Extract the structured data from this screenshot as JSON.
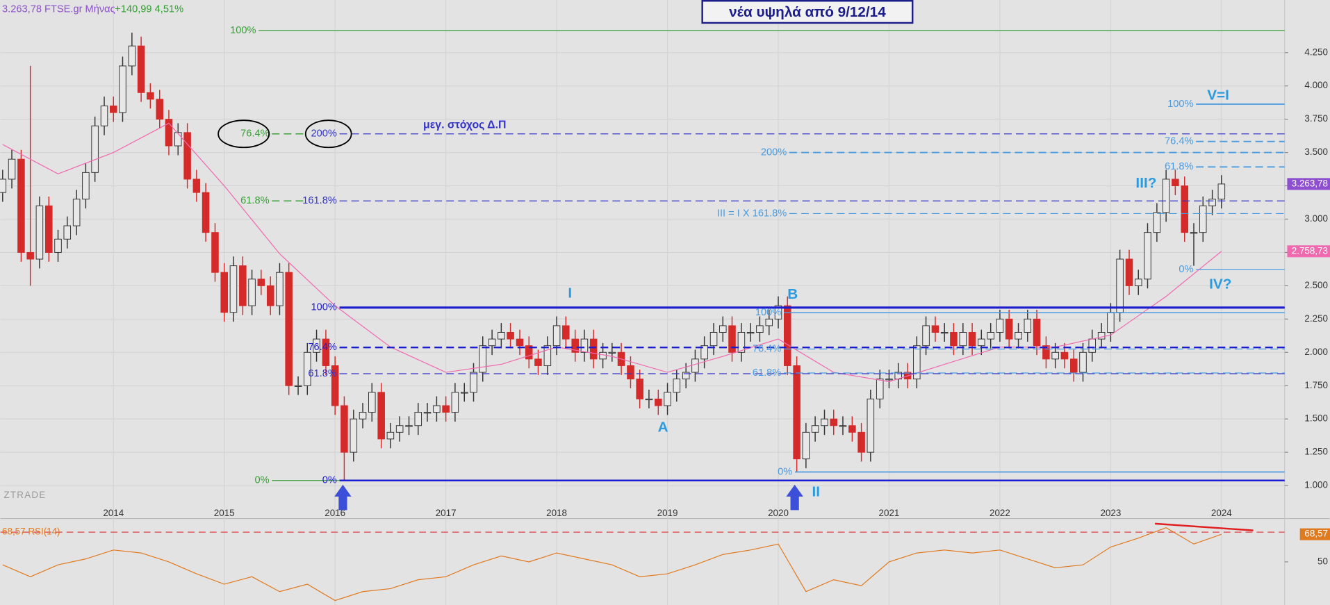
{
  "chart_data": [
    {
      "type": "candlestick",
      "title": "νέα υψηλά από 9/12/14",
      "header": [
        "3.263,78 FTSE.gr Μήνας",
        "+140,99 4,51%"
      ],
      "watermark": "ZTRADE",
      "xlim": [
        2012.98,
        2024.57
      ],
      "xticks": [
        2014,
        2015,
        2016,
        2017,
        2018,
        2019,
        2020,
        2021,
        2022,
        2023,
        2024
      ],
      "ylim": [
        765,
        4645
      ],
      "yticks": [
        {
          "value": 1000,
          "label": "1.000"
        },
        {
          "value": 1250,
          "label": "1.250"
        },
        {
          "value": 1500,
          "label": "1.500"
        },
        {
          "value": 1750,
          "label": "1.750"
        },
        {
          "value": 2000,
          "label": "2.000"
        },
        {
          "value": 2250,
          "label": "2.250"
        },
        {
          "value": 2500,
          "label": "2.500"
        },
        {
          "value": 2750,
          "label": "2.750"
        },
        {
          "value": 3000,
          "label": "3.000"
        },
        {
          "value": 3250,
          "label": "3.250"
        },
        {
          "value": 3500,
          "label": "3.500"
        },
        {
          "value": 3750,
          "label": "3.750"
        },
        {
          "value": 4000,
          "label": "4.000"
        },
        {
          "value": 4250,
          "label": "4.250"
        }
      ],
      "grid": true,
      "up_color": "#e8e8e8",
      "down_color": "#d42a2a",
      "x": [
        2013,
        2013.083,
        2013.167,
        2013.25,
        2013.333,
        2013.417,
        2013.5,
        2013.583,
        2013.667,
        2013.75,
        2013.833,
        2013.917,
        2014,
        2014.083,
        2014.167,
        2014.25,
        2014.333,
        2014.417,
        2014.5,
        2014.583,
        2014.667,
        2014.75,
        2014.833,
        2014.917,
        2015,
        2015.083,
        2015.167,
        2015.25,
        2015.333,
        2015.417,
        2015.5,
        2015.583,
        2015.667,
        2015.75,
        2015.833,
        2015.917,
        2016,
        2016.083,
        2016.167,
        2016.25,
        2016.333,
        2016.417,
        2016.5,
        2016.583,
        2016.667,
        2016.75,
        2016.833,
        2016.917,
        2017,
        2017.083,
        2017.167,
        2017.25,
        2017.333,
        2017.417,
        2017.5,
        2017.583,
        2017.667,
        2017.75,
        2017.833,
        2017.917,
        2018,
        2018.083,
        2018.167,
        2018.25,
        2018.333,
        2018.417,
        2018.5,
        2018.583,
        2018.667,
        2018.75,
        2018.833,
        2018.917,
        2019,
        2019.083,
        2019.167,
        2019.25,
        2019.333,
        2019.417,
        2019.5,
        2019.583,
        2019.667,
        2019.75,
        2019.833,
        2019.917,
        2020,
        2020.083,
        2020.167,
        2020.25,
        2020.333,
        2020.417,
        2020.5,
        2020.583,
        2020.667,
        2020.75,
        2020.833,
        2020.917,
        2021,
        2021.083,
        2021.167,
        2021.25,
        2021.333,
        2021.417,
        2021.5,
        2021.583,
        2021.667,
        2021.75,
        2021.833,
        2021.917,
        2022,
        2022.083,
        2022.167,
        2022.25,
        2022.333,
        2022.417,
        2022.5,
        2022.583,
        2022.667,
        2022.75,
        2022.833,
        2022.917,
        2023,
        2023.083,
        2023.167,
        2023.25,
        2023.333,
        2023.417,
        2023.5,
        2023.583,
        2023.667,
        2023.75,
        2023.833,
        2023.917,
        2024
      ],
      "open": [
        3200,
        3300,
        3450,
        2750,
        2700,
        3100,
        2750,
        2850,
        2950,
        3150,
        3350,
        3700,
        3850,
        3800,
        4150,
        4300,
        3950,
        3900,
        3750,
        3550,
        3650,
        3300,
        3200,
        2900,
        2600,
        2300,
        2650,
        2350,
        2550,
        2500,
        2350,
        2600,
        1750,
        1750,
        2000,
        2100,
        1900,
        1600,
        1250,
        1500,
        1550,
        1700,
        1350,
        1400,
        1450,
        1450,
        1550,
        1550,
        1600,
        1550,
        1700,
        1700,
        1850,
        2050,
        2100,
        2150,
        2100,
        2050,
        1950,
        1900,
        2050,
        2200,
        2100,
        2000,
        2100,
        1950,
        2000,
        2000,
        1900,
        1800,
        1650,
        1650,
        1600,
        1700,
        1800,
        1850,
        1950,
        2050,
        2150,
        2200,
        2000,
        2150,
        2150,
        2200,
        2250,
        2350,
        1900,
        1200,
        1400,
        1450,
        1500,
        1450,
        1450,
        1400,
        1250,
        1650,
        1800,
        1800,
        1850,
        1800,
        2050,
        2200,
        2150,
        2150,
        2050,
        2150,
        2050,
        2100,
        2150,
        2250,
        2100,
        2150,
        2250,
        2050,
        1950,
        2000,
        1950,
        1850,
        2000,
        2100,
        2150,
        2300,
        2700,
        2500,
        2550,
        2900,
        3050,
        3300,
        3250,
        2900,
        2900,
        3100,
        3150
      ],
      "high": [
        3370,
        3520,
        3520,
        4150,
        3170,
        3170,
        2920,
        3020,
        3220,
        3420,
        3770,
        3920,
        3920,
        4220,
        4400,
        4370,
        4020,
        3970,
        3820,
        3720,
        3720,
        3370,
        3270,
        2970,
        2670,
        2720,
        2720,
        2620,
        2620,
        2570,
        2670,
        2670,
        1820,
        2070,
        2170,
        2170,
        1970,
        1670,
        1570,
        1620,
        1770,
        1770,
        1470,
        1520,
        1520,
        1620,
        1620,
        1670,
        1670,
        1770,
        1770,
        1920,
        2120,
        2170,
        2220,
        2220,
        2170,
        2120,
        2020,
        2120,
        2270,
        2270,
        2170,
        2170,
        2170,
        2070,
        2070,
        2070,
        1970,
        1870,
        1720,
        1720,
        1770,
        1870,
        1920,
        2020,
        2120,
        2220,
        2270,
        2270,
        2220,
        2220,
        2270,
        2320,
        2420,
        2420,
        1970,
        1470,
        1520,
        1570,
        1570,
        1520,
        1520,
        1470,
        1720,
        1870,
        1870,
        1920,
        1920,
        2120,
        2270,
        2270,
        2220,
        2220,
        2220,
        2220,
        2170,
        2220,
        2320,
        2320,
        2220,
        2320,
        2320,
        2120,
        2070,
        2070,
        2020,
        2070,
        2170,
        2220,
        2370,
        2770,
        2770,
        2620,
        2970,
        3120,
        3370,
        3370,
        3320,
        2970,
        3170,
        3220,
        3330
      ],
      "low": [
        3130,
        3230,
        2680,
        2500,
        2630,
        2680,
        2680,
        2780,
        2880,
        3080,
        3280,
        3630,
        3730,
        3730,
        4080,
        3880,
        3830,
        3680,
        3480,
        3480,
        3230,
        3130,
        2830,
        2530,
        2230,
        2230,
        2280,
        2280,
        2430,
        2280,
        2280,
        1680,
        1680,
        1680,
        1930,
        1830,
        1530,
        1040,
        1180,
        1430,
        1480,
        1280,
        1280,
        1330,
        1380,
        1380,
        1480,
        1480,
        1480,
        1480,
        1630,
        1630,
        1780,
        1980,
        2030,
        2030,
        1980,
        1880,
        1830,
        1830,
        1980,
        2030,
        1930,
        1930,
        1880,
        1880,
        1930,
        1830,
        1730,
        1580,
        1580,
        1530,
        1530,
        1630,
        1730,
        1780,
        1880,
        1980,
        2080,
        1930,
        1930,
        2080,
        2080,
        2130,
        2180,
        1830,
        1100,
        1130,
        1330,
        1380,
        1380,
        1380,
        1330,
        1180,
        1180,
        1580,
        1730,
        1730,
        1730,
        1730,
        1980,
        2080,
        2080,
        1980,
        1980,
        1980,
        1980,
        2030,
        2080,
        2030,
        2030,
        2080,
        1980,
        1880,
        1880,
        1880,
        1780,
        1780,
        1930,
        2030,
        2080,
        2230,
        2430,
        2430,
        2480,
        2830,
        2980,
        3180,
        2830,
        2650,
        2830,
        3030,
        3080
      ],
      "close": [
        3300,
        3450,
        2750,
        2700,
        3100,
        2750,
        2850,
        2950,
        3150,
        3350,
        3700,
        3850,
        3800,
        4150,
        4300,
        3950,
        3900,
        3750,
        3550,
        3650,
        3300,
        3200,
        2900,
        2600,
        2300,
        2650,
        2350,
        2550,
        2500,
        2350,
        2600,
        1750,
        1750,
        2000,
        2100,
        1900,
        1600,
        1250,
        1500,
        1550,
        1700,
        1350,
        1400,
        1450,
        1450,
        1550,
        1550,
        1600,
        1550,
        1700,
        1700,
        1850,
        2050,
        2100,
        2150,
        2100,
        2050,
        1950,
        1900,
        2050,
        2200,
        2100,
        2000,
        2100,
        1950,
        2000,
        2000,
        1900,
        1800,
        1650,
        1650,
        1600,
        1700,
        1800,
        1850,
        1950,
        2050,
        2150,
        2200,
        2000,
        2150,
        2150,
        2200,
        2250,
        2350,
        1900,
        1200,
        1400,
        1450,
        1500,
        1450,
        1450,
        1400,
        1250,
        1650,
        1800,
        1800,
        1850,
        1800,
        2050,
        2200,
        2150,
        2150,
        2050,
        2150,
        2050,
        2100,
        2150,
        2250,
        2100,
        2150,
        2250,
        2050,
        1950,
        2000,
        1950,
        1850,
        2000,
        2100,
        2150,
        2300,
        2700,
        2500,
        2550,
        2900,
        3050,
        3300,
        3250,
        2900,
        2900,
        3100,
        3150,
        3263.78
      ],
      "last_price": {
        "value": 3263.78,
        "label": "3.263,78",
        "color": "#8e4fd0"
      },
      "ma": {
        "color": "#f06ab0",
        "x": [
          2013,
          2013.5,
          2014,
          2014.5,
          2015,
          2015.5,
          2016,
          2016.5,
          2017,
          2017.5,
          2018,
          2018.5,
          2019,
          2019.5,
          2020,
          2020.5,
          2021,
          2021.5,
          2022,
          2022.5,
          2023,
          2023.5,
          2024
        ],
        "values": [
          3560,
          3340,
          3500,
          3720,
          3250,
          2740,
          2350,
          2040,
          1850,
          1910,
          2040,
          1970,
          1850,
          1970,
          2100,
          1850,
          1780,
          1910,
          2040,
          2040,
          2130,
          2420,
          2758.73
        ],
        "value_label": "2.758,73"
      },
      "levels": [
        {
          "label": "100%",
          "value": 4416,
          "color": "#3a9e3a",
          "dash": false,
          "width": 1,
          "start": 2015.31,
          "end": 2024.57
        },
        {
          "label": "76.4%",
          "value": 3640,
          "color": "#3a9e3a",
          "dash": true,
          "width": 1.2,
          "start": 2015.43,
          "end": 2015.73
        },
        {
          "label": "61.8%",
          "value": 3137,
          "color": "#3a9e3a",
          "dash": true,
          "width": 1.2,
          "start": 2015.43,
          "end": 2015.73
        },
        {
          "label": "0%",
          "value": 1038,
          "color": "#3a9e3a",
          "dash": false,
          "width": 1,
          "start": 2015.43,
          "end": 2016.04
        },
        {
          "label": "200%",
          "value": 3640,
          "color": "#3434c8",
          "dash": true,
          "width": 1,
          "start": 2016.04,
          "end": 2024.57
        },
        {
          "label": "161.8%",
          "value": 3137,
          "color": "#3434c8",
          "dash": true,
          "width": 1,
          "start": 2016.04,
          "end": 2024.57
        },
        {
          "label": "100%",
          "value": 2336,
          "color": "#1d1dd0",
          "dash": false,
          "width": 2.5,
          "start": 2016.04,
          "end": 2024.57
        },
        {
          "label": "76.4%",
          "value": 2037,
          "color": "#1d1dd0",
          "dash": true,
          "width": 2,
          "start": 2016.04,
          "end": 2024.57
        },
        {
          "label": "61.8%",
          "value": 1840,
          "color": "#3434c8",
          "dash": true,
          "width": 1,
          "start": 2016.04,
          "end": 2024.57
        },
        {
          "label": "0%",
          "value": 1038,
          "color": "#1d1dd0",
          "dash": false,
          "width": 2,
          "start": 2016.04,
          "end": 2024.57
        },
        {
          "label": "100%",
          "value": 2298,
          "color": "#4a9be0",
          "dash": false,
          "width": 1.2,
          "start": 2020.05,
          "end": 2024.57
        },
        {
          "label": "76.4%",
          "value": 2025,
          "color": "#4a9be0",
          "dash": true,
          "width": 1,
          "start": 2020.05,
          "end": 2024.57
        },
        {
          "label": "61.8%",
          "value": 1845,
          "color": "#4a9be0",
          "dash": true,
          "width": 1,
          "start": 2020.05,
          "end": 2024.57
        },
        {
          "label": "0%",
          "value": 1102,
          "color": "#4a9be0",
          "dash": false,
          "width": 1.5,
          "start": 2020.15,
          "end": 2024.57
        },
        {
          "label": "200%",
          "value": 3500,
          "color": "#4a9be0",
          "dash": true,
          "width": 1.5,
          "start": 2020.1,
          "end": 2024.57
        },
        {
          "label": "III = I X 161.8%",
          "value": 3042,
          "color": "#4a9be0",
          "dash": true,
          "width": 1,
          "start": 2020.1,
          "end": 2024.57
        },
        {
          "label": "100%",
          "value": 3863,
          "color": "#4a9be0",
          "dash": false,
          "width": 1.5,
          "start": 2023.77,
          "end": 2024.57
        },
        {
          "label": "76.4%",
          "value": 3583,
          "color": "#4a9be0",
          "dash": true,
          "width": 1.5,
          "start": 2023.77,
          "end": 2024.57
        },
        {
          "label": "61.8%",
          "value": 3392,
          "color": "#4a9be0",
          "dash": true,
          "width": 1.5,
          "start": 2023.77,
          "end": 2024.57
        },
        {
          "label": "0%",
          "value": 2622,
          "color": "#4a9be0",
          "dash": false,
          "width": 1,
          "start": 2023.77,
          "end": 2024.57
        }
      ],
      "annotations": [
        {
          "text": "μεγ. στόχος Δ.Π",
          "x": 2017.17,
          "y": 3704,
          "color": "#3434c8"
        },
        {
          "text": "I",
          "x": 2018.12,
          "y": 2438,
          "color": "#2b9be0"
        },
        {
          "text": "A",
          "x": 2018.96,
          "y": 1432,
          "color": "#2b9be0"
        },
        {
          "text": "B",
          "x": 2020.13,
          "y": 2431,
          "color": "#2b9be0"
        },
        {
          "text": "II",
          "x": 2020.34,
          "y": 949,
          "color": "#2b9be0"
        },
        {
          "text": "III?",
          "x": 2023.32,
          "y": 3265,
          "color": "#2b9be0"
        },
        {
          "text": "IV?",
          "x": 2023.99,
          "y": 2508,
          "color": "#2b9be0"
        },
        {
          "text": "V=I",
          "x": 2023.97,
          "y": 3926,
          "color": "#2b9be0"
        }
      ]
    },
    {
      "type": "line",
      "label": "68,57 RSI(14)",
      "color": "#e07a1f",
      "xlim": [
        2012.98,
        2024.57
      ],
      "ylim": [
        21,
        78
      ],
      "yticks": [
        50
      ],
      "reference": 70,
      "x": [
        2013,
        2013.25,
        2013.5,
        2013.75,
        2014,
        2014.25,
        2014.5,
        2014.75,
        2015,
        2015.25,
        2015.5,
        2015.75,
        2016,
        2016.25,
        2016.5,
        2016.75,
        2017,
        2017.25,
        2017.5,
        2017.75,
        2018,
        2018.25,
        2018.5,
        2018.75,
        2019,
        2019.25,
        2019.5,
        2019.75,
        2020,
        2020.25,
        2020.5,
        2020.75,
        2021,
        2021.25,
        2021.5,
        2021.75,
        2022,
        2022.25,
        2022.5,
        2022.75,
        2023,
        2023.25,
        2023.5,
        2023.75,
        2024
      ],
      "values": [
        48,
        40,
        48,
        52,
        58,
        56,
        50,
        42,
        35,
        40,
        30,
        35,
        24,
        30,
        32,
        38,
        40,
        48,
        54,
        50,
        56,
        52,
        48,
        40,
        42,
        48,
        55,
        58,
        62,
        30,
        38,
        34,
        50,
        56,
        58,
        56,
        58,
        52,
        46,
        48,
        60,
        66,
        73,
        62,
        68.57
      ],
      "value_label": "68,57"
    }
  ]
}
